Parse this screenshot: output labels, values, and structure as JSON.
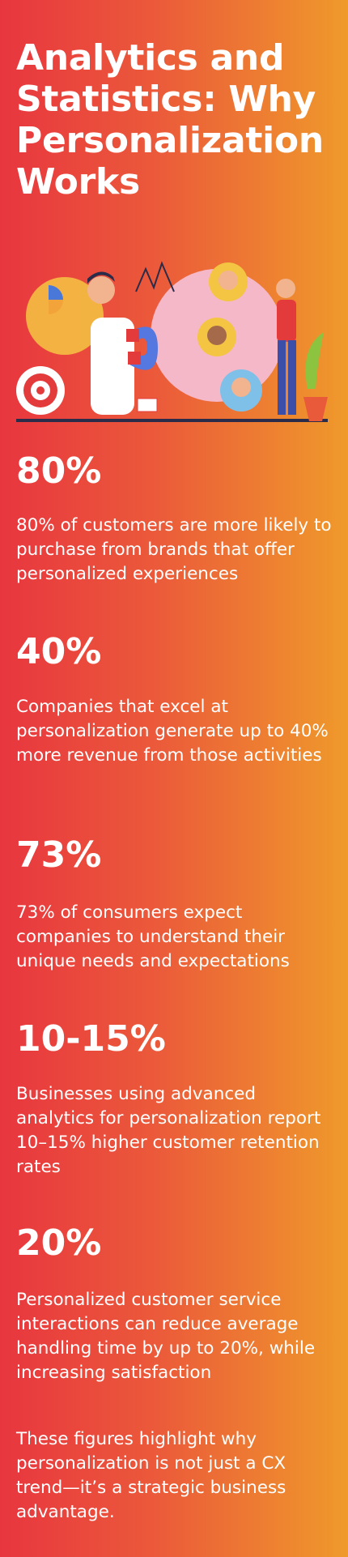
{
  "header": {
    "title": "Analytics and Statistics: Why Personalization Works"
  },
  "stats": [
    {
      "value": "80%",
      "text": "80% of customers are more likely to purchase from brands that offer personalized experiences"
    },
    {
      "value": "40%",
      "text": "Companies that excel at personalization generate up to 40% more revenue from those activities"
    },
    {
      "value": "73%",
      "text": "73% of consumers expect companies to understand their unique needs and expectations"
    },
    {
      "value": "10-15%",
      "text": "Businesses using advanced analytics for personalization report 10–15% higher customer retention rates"
    },
    {
      "value": "20%",
      "text": "Personalized customer service interactions can reduce average handling time by up to 20%, while increasing satisfaction"
    }
  ],
  "closing": "These figures highlight why personalization is not just a CX trend—it’s a strategic business advantage."
}
